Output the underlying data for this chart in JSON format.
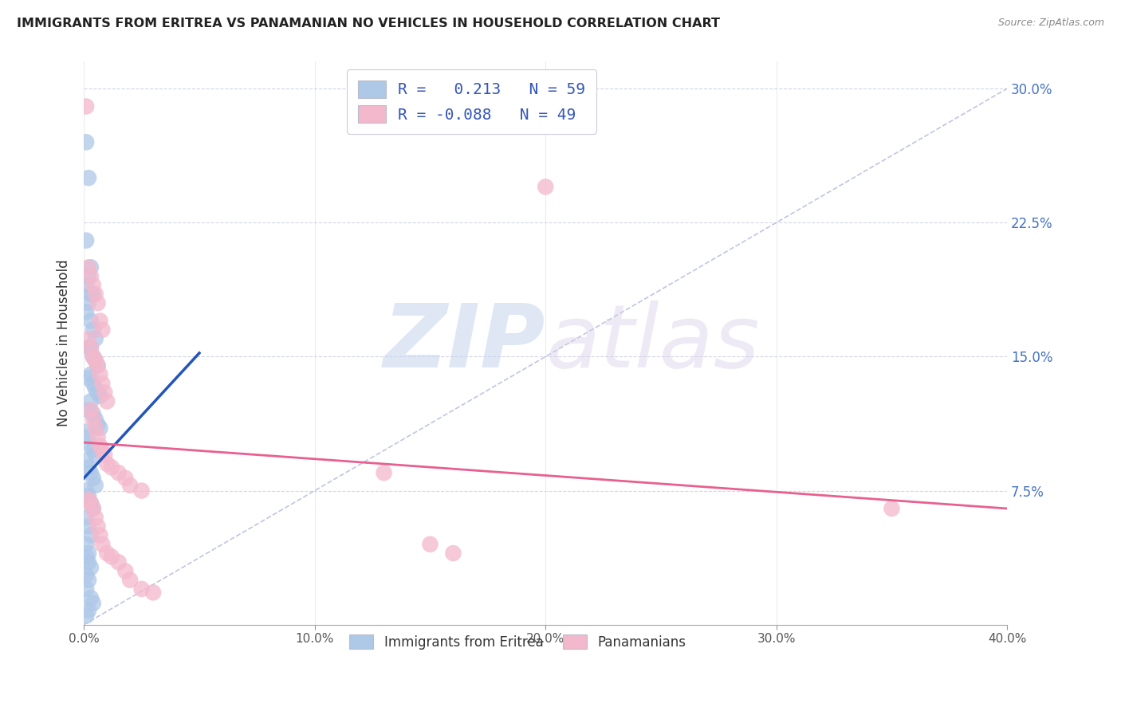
{
  "title": "IMMIGRANTS FROM ERITREA VS PANAMANIAN NO VEHICLES IN HOUSEHOLD CORRELATION CHART",
  "source": "Source: ZipAtlas.com",
  "ylabel": "No Vehicles in Household",
  "ytick_labels": [
    "",
    "7.5%",
    "15.0%",
    "22.5%",
    "30.0%"
  ],
  "ytick_values": [
    0.0,
    0.075,
    0.15,
    0.225,
    0.3
  ],
  "xtick_values": [
    0.0,
    0.1,
    0.2,
    0.3,
    0.4
  ],
  "xtick_labels": [
    "0.0%",
    "10.0%",
    "20.0%",
    "30.0%",
    "40.0%"
  ],
  "xlim": [
    0.0,
    0.4
  ],
  "ylim": [
    0.0,
    0.315
  ],
  "color_blue": "#aec8e8",
  "color_pink": "#f4b8cc",
  "color_blue_line": "#2255bb",
  "color_pink_line": "#e86090",
  "color_diag": "#b0b8d8",
  "watermark_zip": "ZIP",
  "watermark_atlas": "atlas",
  "legend_label1": "Immigrants from Eritrea",
  "legend_label2": "Panamanians",
  "legend_r1": "R =   0.213   N = 59",
  "legend_r2": "R = -0.088   N = 49",
  "blue_scatter_x": [
    0.001,
    0.002,
    0.001,
    0.003,
    0.002,
    0.001,
    0.003,
    0.004,
    0.002,
    0.001,
    0.003,
    0.004,
    0.005,
    0.003,
    0.002,
    0.004,
    0.005,
    0.006,
    0.003,
    0.002,
    0.004,
    0.005,
    0.006,
    0.007,
    0.003,
    0.002,
    0.004,
    0.005,
    0.006,
    0.007,
    0.001,
    0.002,
    0.003,
    0.004,
    0.005,
    0.001,
    0.002,
    0.003,
    0.004,
    0.005,
    0.001,
    0.002,
    0.003,
    0.004,
    0.001,
    0.002,
    0.003,
    0.001,
    0.002,
    0.001,
    0.002,
    0.003,
    0.001,
    0.002,
    0.001,
    0.003,
    0.004,
    0.002,
    0.001
  ],
  "blue_scatter_y": [
    0.27,
    0.25,
    0.215,
    0.2,
    0.195,
    0.19,
    0.185,
    0.185,
    0.18,
    0.175,
    0.17,
    0.165,
    0.16,
    0.155,
    0.155,
    0.15,
    0.148,
    0.145,
    0.14,
    0.138,
    0.135,
    0.132,
    0.13,
    0.128,
    0.125,
    0.12,
    0.118,
    0.115,
    0.112,
    0.11,
    0.108,
    0.105,
    0.1,
    0.098,
    0.095,
    0.092,
    0.088,
    0.085,
    0.082,
    0.078,
    0.075,
    0.072,
    0.068,
    0.065,
    0.06,
    0.055,
    0.05,
    0.045,
    0.04,
    0.038,
    0.035,
    0.032,
    0.028,
    0.025,
    0.02,
    0.015,
    0.012,
    0.008,
    0.005
  ],
  "pink_scatter_x": [
    0.001,
    0.002,
    0.003,
    0.004,
    0.005,
    0.006,
    0.007,
    0.008,
    0.002,
    0.003,
    0.004,
    0.005,
    0.006,
    0.007,
    0.008,
    0.009,
    0.01,
    0.003,
    0.004,
    0.005,
    0.006,
    0.007,
    0.008,
    0.009,
    0.01,
    0.012,
    0.015,
    0.018,
    0.02,
    0.025,
    0.002,
    0.003,
    0.004,
    0.005,
    0.006,
    0.007,
    0.008,
    0.01,
    0.012,
    0.015,
    0.018,
    0.02,
    0.025,
    0.03,
    0.13,
    0.15,
    0.16,
    0.35,
    0.2
  ],
  "pink_scatter_y": [
    0.29,
    0.2,
    0.195,
    0.19,
    0.185,
    0.18,
    0.17,
    0.165,
    0.16,
    0.155,
    0.15,
    0.148,
    0.145,
    0.14,
    0.135,
    0.13,
    0.125,
    0.12,
    0.115,
    0.11,
    0.105,
    0.1,
    0.098,
    0.095,
    0.09,
    0.088,
    0.085,
    0.082,
    0.078,
    0.075,
    0.07,
    0.068,
    0.065,
    0.06,
    0.055,
    0.05,
    0.045,
    0.04,
    0.038,
    0.035,
    0.03,
    0.025,
    0.02,
    0.018,
    0.085,
    0.045,
    0.04,
    0.065,
    0.245
  ],
  "blue_line_x": [
    0.0,
    0.05
  ],
  "blue_line_y": [
    0.082,
    0.152
  ],
  "pink_line_x": [
    0.0,
    0.4
  ],
  "pink_line_y": [
    0.102,
    0.065
  ],
  "diag_line_x": [
    0.0,
    0.4
  ],
  "diag_line_y": [
    0.0,
    0.3
  ]
}
